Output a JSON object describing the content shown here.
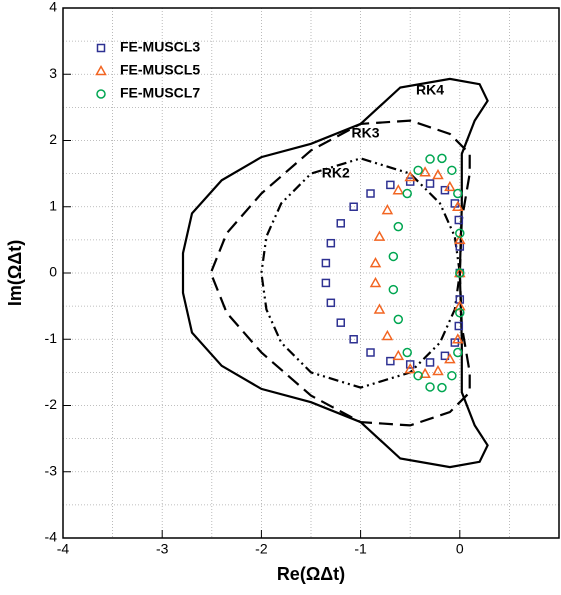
{
  "chart_data": {
    "type": "scatter",
    "xlabel": "Re(ΩΔt)",
    "ylabel": "Im(ΩΔt)",
    "xlim": [
      -4,
      1
    ],
    "ylim": [
      -4,
      4
    ],
    "xticks": [
      -4,
      -3,
      -2,
      -1,
      0
    ],
    "yticks": [
      -4,
      -3,
      -2,
      -1,
      0,
      1,
      2,
      3,
      4
    ],
    "xminor": [
      -3.5,
      -2.5,
      -1.5,
      -0.5,
      0.5
    ],
    "yminor": [
      -3.5,
      -2.5,
      -1.5,
      -0.5,
      0.5,
      1.5,
      2.5,
      3.5
    ],
    "grid": true,
    "legend": "upper-left",
    "series": [
      {
        "name": "FE-MUSCL3",
        "mode": "markers",
        "marker": "square",
        "color": "#2e3192",
        "in_legend": true,
        "x": [
          0,
          0,
          -0.01,
          -0.05,
          -0.15,
          -0.3,
          -0.5,
          -0.7,
          -0.9,
          -1.07,
          -1.2,
          -1.3,
          -1.35,
          -1.35,
          -1.3,
          -1.2,
          -1.07,
          -0.9,
          -0.7,
          -0.5,
          -0.3,
          -0.15,
          -0.05,
          -0.01,
          0
        ],
        "y": [
          0,
          0.4,
          0.8,
          1.05,
          1.25,
          1.35,
          1.38,
          1.33,
          1.2,
          1.0,
          0.75,
          0.45,
          0.15,
          -0.15,
          -0.45,
          -0.75,
          -1.0,
          -1.2,
          -1.33,
          -1.38,
          -1.35,
          -1.25,
          -1.05,
          -0.8,
          -0.4
        ]
      },
      {
        "name": "FE-MUSCL5",
        "mode": "markers",
        "marker": "triangle",
        "color": "#f26522",
        "in_legend": true,
        "x": [
          0,
          0,
          -0.02,
          -0.1,
          -0.22,
          -0.35,
          -0.5,
          -0.62,
          -0.73,
          -0.81,
          -0.85,
          -0.85,
          -0.81,
          -0.73,
          -0.62,
          -0.5,
          -0.35,
          -0.22,
          -0.1,
          -0.02,
          0
        ],
        "y": [
          0,
          0.5,
          1.0,
          1.3,
          1.48,
          1.52,
          1.45,
          1.25,
          0.95,
          0.55,
          0.15,
          -0.15,
          -0.55,
          -0.95,
          -1.25,
          -1.45,
          -1.52,
          -1.48,
          -1.3,
          -1.0,
          -0.5
        ]
      },
      {
        "name": "FE-MUSCL7",
        "mode": "markers",
        "marker": "circle",
        "color": "#00a651",
        "in_legend": true,
        "x": [
          0,
          0,
          -0.02,
          -0.08,
          -0.18,
          -0.3,
          -0.42,
          -0.53,
          -0.62,
          -0.67,
          -0.67,
          -0.62,
          -0.53,
          -0.42,
          -0.3,
          -0.18,
          -0.08,
          -0.02,
          0
        ],
        "y": [
          0,
          0.6,
          1.2,
          1.55,
          1.73,
          1.72,
          1.55,
          1.2,
          0.7,
          0.25,
          -0.25,
          -0.7,
          -1.2,
          -1.55,
          -1.72,
          -1.73,
          -1.55,
          -1.2,
          -0.6
        ]
      },
      {
        "name": "RK2",
        "mode": "line",
        "dash": "dashdotdot",
        "color": "#000000",
        "in_legend": false,
        "x": [
          0,
          -0.05,
          -0.2,
          -0.5,
          -1,
          -1.5,
          -1.8,
          -1.95,
          -2,
          -1.95,
          -1.8,
          -1.5,
          -1,
          -0.5,
          -0.2,
          -0.05,
          0
        ],
        "y": [
          0,
          0.55,
          1.05,
          1.5,
          1.73,
          1.5,
          1.05,
          0.55,
          0,
          -0.55,
          -1.05,
          -1.5,
          -1.73,
          -1.5,
          -1.05,
          -0.55,
          0
        ]
      },
      {
        "name": "RK3",
        "mode": "line",
        "dash": "dashed",
        "color": "#000000",
        "in_legend": false,
        "x": [
          0,
          0.02,
          0.1,
          0.1,
          -0.1,
          -0.5,
          -1,
          -1.5,
          -2,
          -2.35,
          -2.51,
          -2.35,
          -2,
          -1.5,
          -1,
          -0.5,
          -0.1,
          0.1,
          0.1,
          0.02,
          0
        ],
        "y": [
          0,
          0.8,
          1.5,
          1.8,
          2.1,
          2.3,
          2.25,
          1.85,
          1.2,
          0.6,
          0,
          -0.6,
          -1.2,
          -1.85,
          -2.25,
          -2.3,
          -2.1,
          -1.8,
          -1.5,
          -0.8,
          0
        ]
      },
      {
        "name": "RK4",
        "mode": "line",
        "dash": "solid",
        "color": "#000000",
        "in_legend": false,
        "x": [
          0,
          0.02,
          0.02,
          0.15,
          0.28,
          0.2,
          -0.1,
          -0.6,
          -1,
          -1.5,
          -2,
          -2.4,
          -2.7,
          -2.79,
          -2.79,
          -2.7,
          -2.4,
          -2,
          -1.5,
          -1,
          -0.6,
          -0.1,
          0.2,
          0.28,
          0.15,
          0.02,
          0.02,
          0
        ],
        "y": [
          0,
          1,
          1.8,
          2.3,
          2.6,
          2.85,
          2.93,
          2.8,
          2.25,
          1.95,
          1.75,
          1.4,
          0.9,
          0.3,
          -0.3,
          -0.9,
          -1.4,
          -1.75,
          -1.95,
          -2.25,
          -2.8,
          -2.93,
          -2.85,
          -2.6,
          -2.3,
          -1.8,
          -1,
          0
        ]
      }
    ]
  }
}
